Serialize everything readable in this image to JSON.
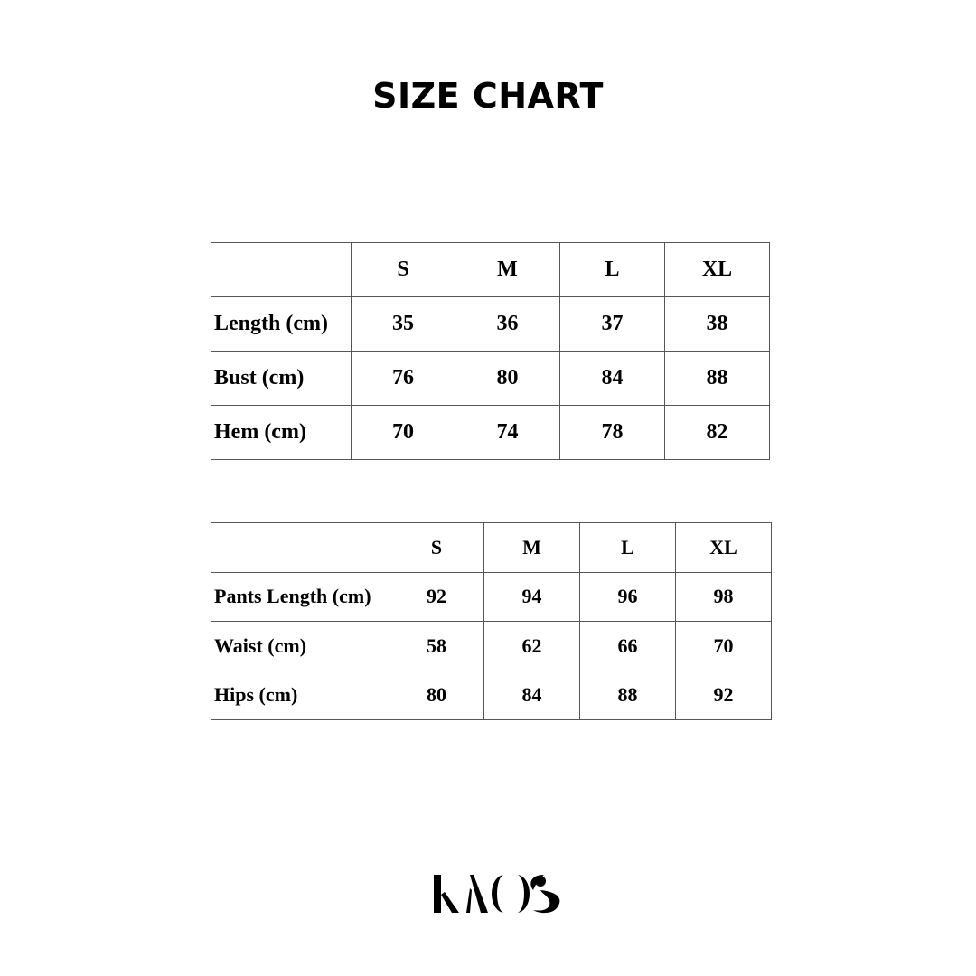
{
  "title": "SIZE CHART",
  "top_table": {
    "headers": [
      "",
      "S",
      "M",
      "L",
      "XL"
    ],
    "rows": [
      {
        "label": "Length (cm)",
        "values": [
          "35",
          "36",
          "37",
          "38"
        ]
      },
      {
        "label": "Bust (cm)",
        "values": [
          "76",
          "80",
          "84",
          "88"
        ]
      },
      {
        "label": "Hem (cm)",
        "values": [
          "70",
          "74",
          "78",
          "82"
        ]
      }
    ]
  },
  "bottom_table": {
    "headers": [
      "",
      "S",
      "M",
      "L",
      "XL"
    ],
    "rows": [
      {
        "label": "Pants Length (cm)",
        "values": [
          "92",
          "94",
          "96",
          "98"
        ]
      },
      {
        "label": "Waist (cm)",
        "values": [
          "58",
          "62",
          "66",
          "70"
        ]
      },
      {
        "label": "Hips (cm)",
        "values": [
          "80",
          "84",
          "88",
          "92"
        ]
      }
    ]
  },
  "logo": {
    "text": "KAOS"
  }
}
